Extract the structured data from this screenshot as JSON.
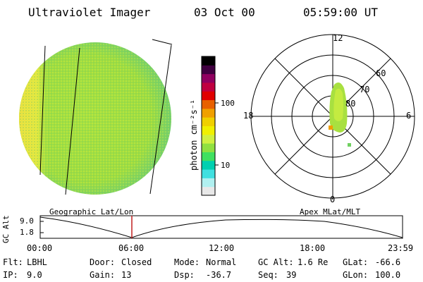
{
  "header": {
    "instrument": "Ultraviolet Imager",
    "date": "03 Oct 00",
    "time": "05:59:00 UT"
  },
  "colorbar": {
    "unit": "photon cm⁻²s⁻¹",
    "ticks": [
      "100",
      "10"
    ],
    "colors": [
      "#e8e8e8",
      "#b0f0f0",
      "#40e0e0",
      "#00d0b0",
      "#40e060",
      "#90e040",
      "#d0f040",
      "#f0f000",
      "#f0d000",
      "#f0a000",
      "#e86000",
      "#e00000",
      "#c00040",
      "#900060",
      "#400040",
      "#000000"
    ]
  },
  "polar_plot": {
    "mlt_labels": [
      "12",
      "18",
      "6",
      "0"
    ],
    "lat_labels": [
      "60",
      "70",
      "80"
    ]
  },
  "altitude_strip": {
    "left_title": "Geographic Lat/Lon",
    "right_title": "Apex MLat/MLT",
    "axis_label": "GC Alt",
    "y_ticks": [
      "9.0",
      "1.8"
    ],
    "x_ticks": [
      "00:00",
      "06:00",
      "12:00",
      "18:00",
      "23:59"
    ],
    "marker_color": "#c02020"
  },
  "status": {
    "flt_label": "Flt:",
    "flt_value": "LBHL",
    "ip_label": "IP:",
    "ip_value": "9.0",
    "door_label": "Door:",
    "door_value": "Closed",
    "gain_label": "Gain:",
    "gain_value": "13",
    "mode_label": "Mode:",
    "mode_value": "Normal",
    "dsp_label": "Dsp:",
    "dsp_value": "-36.7",
    "gcalt_label": "GC Alt:",
    "gcalt_value": "1.6 Re",
    "seq_label": "Seq:",
    "seq_value": "39",
    "glat_label": "GLat:",
    "glat_value": "-66.6",
    "glon_label": "GLon:",
    "glon_value": "100.0"
  }
}
